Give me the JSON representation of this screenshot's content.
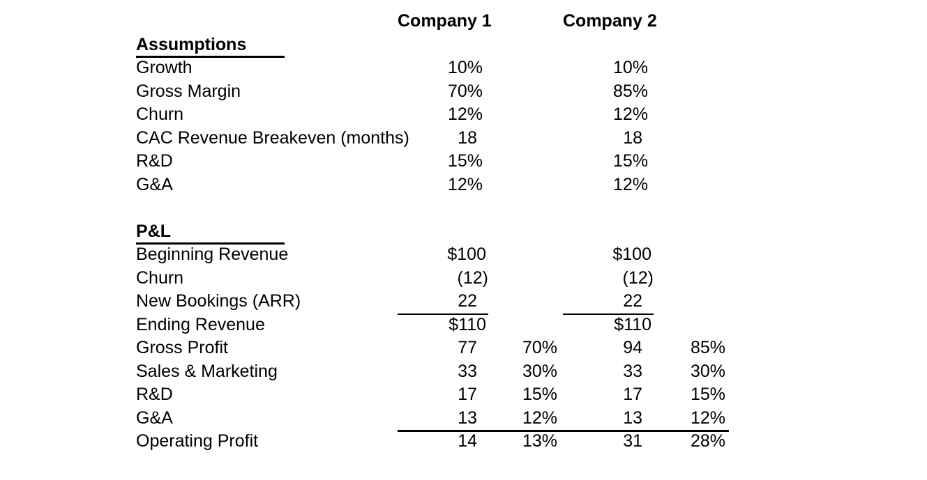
{
  "colors": {
    "text": "#000000",
    "background": "#ffffff",
    "rule": "#000000"
  },
  "header": {
    "company1": "Company 1",
    "company2": "Company 2"
  },
  "assumptions": {
    "title": "Assumptions",
    "rows": [
      {
        "label": "Growth",
        "c1": "10%",
        "c2": "10%"
      },
      {
        "label": "Gross Margin",
        "c1": "70%",
        "c2": "85%"
      },
      {
        "label": "Churn",
        "c1": "12%",
        "c2": "12%"
      },
      {
        "label": "CAC Revenue Breakeven (months)",
        "c1": "18",
        "c2": "18"
      },
      {
        "label": "R&D",
        "c1": "15%",
        "c2": "15%"
      },
      {
        "label": "G&A",
        "c1": "12%",
        "c2": "12%"
      }
    ]
  },
  "pnl": {
    "title": "P&L",
    "rows": [
      {
        "label": "Beginning Revenue",
        "c1": "$100",
        "c1p": "",
        "c2": "$100",
        "c2p": ""
      },
      {
        "label": "Churn",
        "c1": "(12)",
        "c1p": "",
        "c2": "(12)",
        "c2p": ""
      },
      {
        "label": "New Bookings (ARR)",
        "c1": "22",
        "c1p": "",
        "c2": "22",
        "c2p": ""
      },
      {
        "label": "Ending Revenue",
        "c1": "$110",
        "c1p": "",
        "c2": "$110",
        "c2p": ""
      },
      {
        "label": "Gross Profit",
        "c1": "77",
        "c1p": "70%",
        "c2": "94",
        "c2p": "85%"
      },
      {
        "label": "Sales & Marketing",
        "c1": "33",
        "c1p": "30%",
        "c2": "33",
        "c2p": "30%"
      },
      {
        "label": "R&D",
        "c1": "17",
        "c1p": "15%",
        "c2": "17",
        "c2p": "15%"
      },
      {
        "label": "G&A",
        "c1": "13",
        "c1p": "12%",
        "c2": "13",
        "c2p": "12%"
      },
      {
        "label": "Operating Profit",
        "c1": "14",
        "c1p": "13%",
        "c2": "31",
        "c2p": "28%"
      }
    ]
  }
}
